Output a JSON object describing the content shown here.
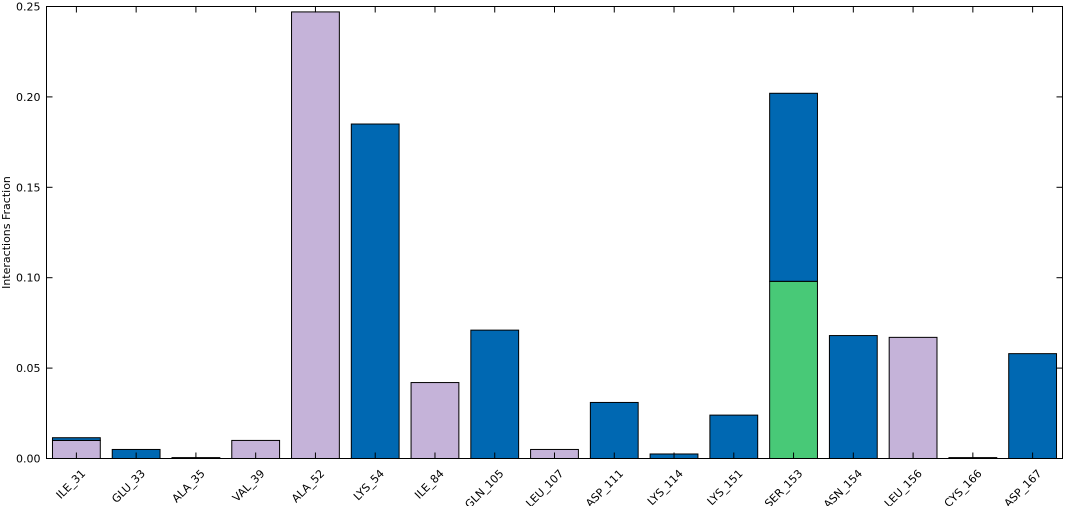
{
  "chart_data": {
    "type": "bar",
    "stacked": true,
    "title": "",
    "xlabel": "",
    "ylabel": "Interactions Fraction",
    "ylim": [
      0,
      0.25
    ],
    "yticks": [
      "0.00",
      "0.05",
      "0.10",
      "0.15",
      "0.20",
      "0.25"
    ],
    "grid": false,
    "categories": [
      "ILE_31",
      "GLU_33",
      "ALA_35",
      "VAL_39",
      "ALA_52",
      "LYS_54",
      "ILE_84",
      "GLN_105",
      "LEU_107",
      "ASP_111",
      "LYS_114",
      "LYS_151",
      "SER_153",
      "ASN_154",
      "LEU_156",
      "CYS_166",
      "ASP_167"
    ],
    "series": [
      {
        "color": "#c5b3d9",
        "values": [
          0.01,
          0,
          0,
          0.01,
          0.247,
          0,
          0.042,
          0,
          0.005,
          0,
          0,
          0,
          0,
          0,
          0.067,
          0,
          0
        ]
      },
      {
        "color": "#48c977",
        "values": [
          0,
          0,
          0,
          0,
          0,
          0,
          0,
          0,
          0,
          0,
          0,
          0,
          0.098,
          0,
          0,
          0,
          0
        ]
      },
      {
        "color": "#0068b2",
        "values": [
          0.0015,
          0.005,
          0.0005,
          0,
          0,
          0.185,
          0,
          0.071,
          0,
          0.031,
          0.0025,
          0.024,
          0.104,
          0.068,
          0,
          0.0005,
          0.058
        ]
      }
    ]
  }
}
